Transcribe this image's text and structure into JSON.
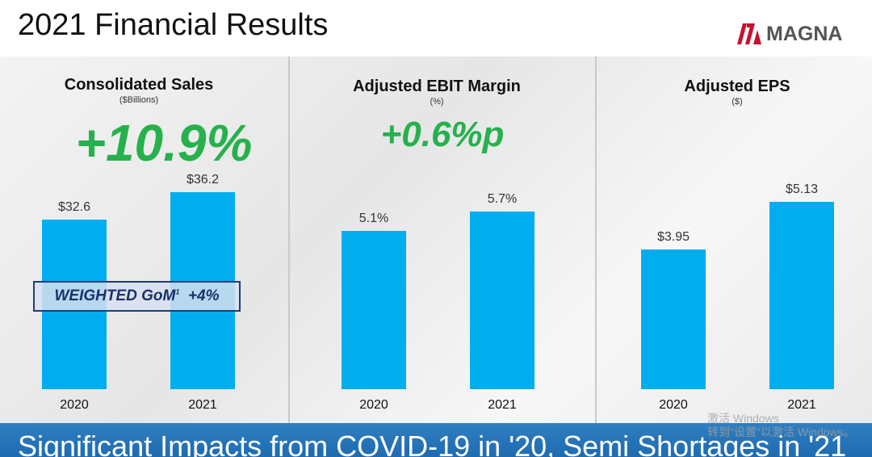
{
  "title": "2021 Financial Results",
  "logo": {
    "text": "MAGNA",
    "icon": "magna-logo-icon"
  },
  "colors": {
    "bar": "#00aeef",
    "growth": "#26b14c",
    "gom_text": "#1b2f6a",
    "footer": "#1f6bb0"
  },
  "panels": [
    {
      "title": "Consolidated Sales",
      "unit": "($Billions)",
      "growth": "+10.9%"
    },
    {
      "title": "Adjusted EBIT Margin",
      "unit": "(%)",
      "growth": "+0.6%p"
    },
    {
      "title": "Adjusted EPS",
      "unit": "($)",
      "growth": ""
    }
  ],
  "gom_box": {
    "label": "WEIGHTED GoM",
    "superscript": "1",
    "value": "+4%"
  },
  "footer": {
    "text": "Significant Impacts from COVID-19 in '20, Semi Shortages in '21"
  },
  "watermark": {
    "line1": "激活 Windows",
    "line2": "转到\"设置\"以激活 Windows。"
  },
  "chart_data": [
    {
      "type": "bar",
      "title": "Consolidated Sales",
      "ylabel": "($Billions)",
      "categories": [
        "2020",
        "2021"
      ],
      "values": [
        32.6,
        36.2
      ],
      "labels": [
        "$32.6",
        "$36.2"
      ]
    },
    {
      "type": "bar",
      "title": "Adjusted EBIT Margin",
      "ylabel": "(%)",
      "categories": [
        "2020",
        "2021"
      ],
      "values": [
        5.1,
        5.7
      ],
      "labels": [
        "5.1%",
        "5.7%"
      ]
    },
    {
      "type": "bar",
      "title": "Adjusted EPS",
      "ylabel": "($)",
      "categories": [
        "2020",
        "2021"
      ],
      "values": [
        3.95,
        5.13
      ],
      "labels": [
        "$3.95",
        "$5.13"
      ]
    }
  ]
}
